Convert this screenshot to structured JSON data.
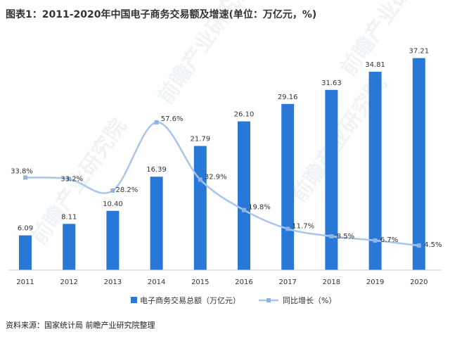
{
  "page": {
    "title": "图表1：2011-2020年中国电子商务交易额及增速(单位：万亿元，%)",
    "source": "资料来源：国家统计局 前瞻产业研究院整理",
    "watermark": "前瞻产业研究院"
  },
  "chart_data": {
    "type": "bar",
    "title": "图表1：2011-2020年中国电子商务交易额及增速(单位：万亿元，%)",
    "categories": [
      "2011",
      "2012",
      "2013",
      "2014",
      "2015",
      "2016",
      "2017",
      "2018",
      "2019",
      "2020"
    ],
    "series": [
      {
        "name": "电子商务交易总额（万亿元）",
        "type": "bar",
        "values": [
          6.09,
          8.11,
          10.4,
          16.39,
          21.79,
          26.1,
          29.16,
          31.63,
          34.81,
          37.21
        ],
        "labels": [
          "6.09",
          "8.11",
          "10.40",
          "16.39",
          "21.79",
          "26.10",
          "29.16",
          "31.63",
          "34.81",
          "37.21"
        ]
      },
      {
        "name": "同比增长（%）",
        "type": "line",
        "values": [
          33.8,
          33.2,
          28.2,
          57.6,
          32.9,
          19.8,
          11.7,
          8.5,
          6.7,
          4.5
        ],
        "labels": [
          "33.8%",
          "33.2%",
          "28.2%",
          "57.6%",
          "32.9%",
          "19.8%",
          "11.7%",
          "8.5%",
          "6.7%",
          "4.5%"
        ]
      }
    ],
    "legend_position": "bottom",
    "grid": false,
    "colors": {
      "bar": "#2878d8",
      "line": "#a9c5ea",
      "marker": "#8fb3e3",
      "axis": "#c8c8c8",
      "text": "#333333"
    }
  }
}
